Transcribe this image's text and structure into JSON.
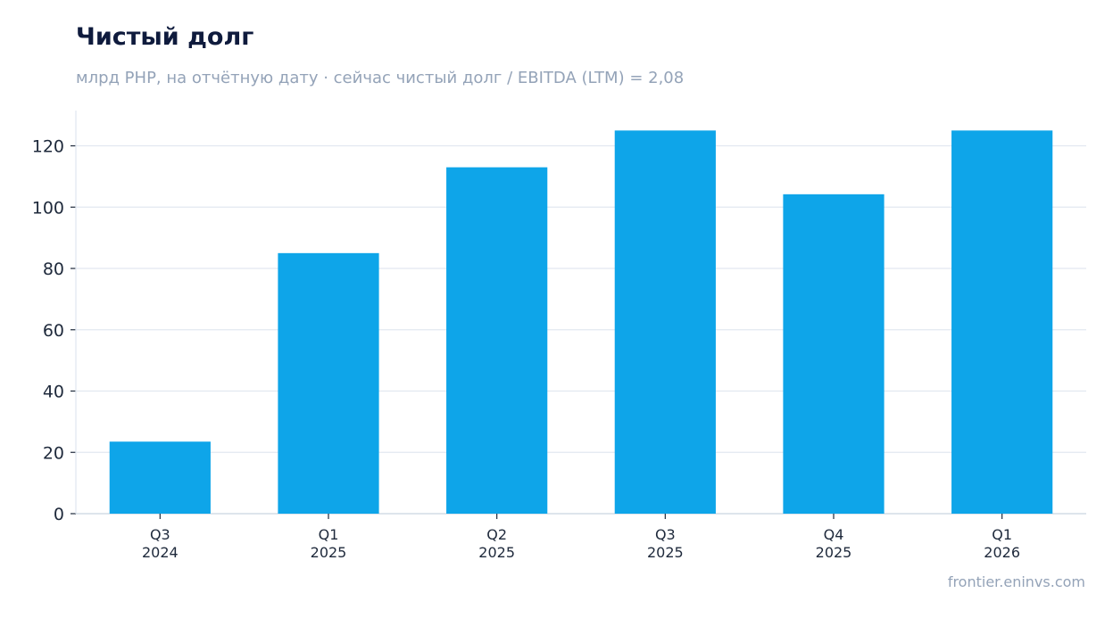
{
  "colors": {
    "bar": "#0ea5e9",
    "grid": "#e2e8f0",
    "axis": "#cbd5e1",
    "title": "#0f1b3d",
    "muted": "#94a3b8"
  },
  "header": {
    "title": "Чистый долг",
    "subtitle": "млрд PHP, на отчётную дату · сейчас чистый долг / EBITDA (LTM) = 2,08"
  },
  "footer": {
    "credit": "frontier.eninvs.com"
  },
  "chart_data": {
    "type": "bar",
    "title": "Чистый долг",
    "subtitle": "млрд PHP, на отчётную дату · сейчас чистый долг / EBITDA (LTM) = 2,08",
    "categories": [
      [
        "Q3",
        "2024"
      ],
      [
        "Q1",
        "2025"
      ],
      [
        "Q2",
        "2025"
      ],
      [
        "Q3",
        "2025"
      ],
      [
        "Q4",
        "2025"
      ],
      [
        "Q1",
        "2026"
      ]
    ],
    "values": [
      23.5,
      85,
      113,
      125,
      104.2,
      125
    ],
    "ylim": [
      0,
      131.5
    ],
    "yticks": [
      0,
      20,
      40,
      60,
      80,
      100,
      120
    ],
    "grid": true,
    "xlabel": "",
    "ylabel": ""
  }
}
